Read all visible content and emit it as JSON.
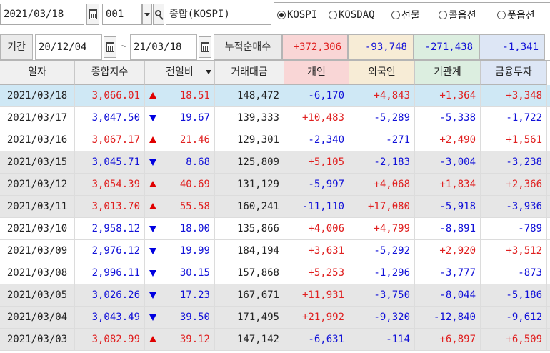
{
  "search": {
    "date": "2021/03/18",
    "code": "001",
    "name": "종합(KOSPI)"
  },
  "market_radios": [
    {
      "label": "KOSPI",
      "selected": true
    },
    {
      "label": "KOSDAQ",
      "selected": false
    },
    {
      "label": "선물",
      "selected": false
    },
    {
      "label": "콜옵션",
      "selected": false
    },
    {
      "label": "풋옵션",
      "selected": false
    }
  ],
  "period": {
    "label": "기간",
    "from": "20/12/04",
    "separator": "~",
    "to": "21/03/18",
    "cumulative_label": "누적순매수",
    "totals": [
      "+372,306",
      "-93,748",
      "-271,438",
      "-1,341"
    ]
  },
  "columns": [
    "일자",
    "종합지수",
    "전일비",
    "거래대금",
    "개인",
    "외국인",
    "기관계",
    "금융투자"
  ],
  "rows": [
    {
      "date": "2021/03/18",
      "index": "3,066.01",
      "dir": "up",
      "change": "18.51",
      "value": "148,472",
      "individual": "-6,170",
      "foreign": "+4,843",
      "institution": "+1,364",
      "financial": "+3,348"
    },
    {
      "date": "2021/03/17",
      "index": "3,047.50",
      "dir": "down",
      "change": "19.67",
      "value": "139,333",
      "individual": "+10,483",
      "foreign": "-5,289",
      "institution": "-5,338",
      "financial": "-1,722"
    },
    {
      "date": "2021/03/16",
      "index": "3,067.17",
      "dir": "up",
      "change": "21.46",
      "value": "129,301",
      "individual": "-2,340",
      "foreign": "-271",
      "institution": "+2,490",
      "financial": "+1,561"
    },
    {
      "date": "2021/03/15",
      "index": "3,045.71",
      "dir": "down",
      "change": "8.68",
      "value": "125,809",
      "individual": "+5,105",
      "foreign": "-2,183",
      "institution": "-3,004",
      "financial": "-3,238"
    },
    {
      "date": "2021/03/12",
      "index": "3,054.39",
      "dir": "up",
      "change": "40.69",
      "value": "131,129",
      "individual": "-5,997",
      "foreign": "+4,068",
      "institution": "+1,834",
      "financial": "+2,366"
    },
    {
      "date": "2021/03/11",
      "index": "3,013.70",
      "dir": "up",
      "change": "55.58",
      "value": "160,241",
      "individual": "-11,110",
      "foreign": "+17,080",
      "institution": "-5,918",
      "financial": "-3,936"
    },
    {
      "date": "2021/03/10",
      "index": "2,958.12",
      "dir": "down",
      "change": "18.00",
      "value": "135,866",
      "individual": "+4,006",
      "foreign": "+4,799",
      "institution": "-8,891",
      "financial": "-789"
    },
    {
      "date": "2021/03/09",
      "index": "2,976.12",
      "dir": "down",
      "change": "19.99",
      "value": "184,194",
      "individual": "+3,631",
      "foreign": "-5,292",
      "institution": "+2,920",
      "financial": "+3,512"
    },
    {
      "date": "2021/03/08",
      "index": "2,996.11",
      "dir": "down",
      "change": "30.15",
      "value": "157,868",
      "individual": "+5,253",
      "foreign": "-1,296",
      "institution": "-3,777",
      "financial": "-873"
    },
    {
      "date": "2021/03/05",
      "index": "3,026.26",
      "dir": "down",
      "change": "17.23",
      "value": "167,671",
      "individual": "+11,931",
      "foreign": "-3,750",
      "institution": "-8,044",
      "financial": "-5,186"
    },
    {
      "date": "2021/03/04",
      "index": "3,043.49",
      "dir": "down",
      "change": "39.50",
      "value": "171,495",
      "individual": "+21,992",
      "foreign": "-9,320",
      "institution": "-12,840",
      "financial": "-9,612"
    },
    {
      "date": "2021/03/03",
      "index": "3,082.99",
      "dir": "up",
      "change": "39.12",
      "value": "147,142",
      "individual": "-6,631",
      "foreign": "-114",
      "institution": "+6,897",
      "financial": "+6,509"
    }
  ],
  "colors": {
    "up": "#e02020",
    "down": "#1010d8",
    "header_individual_bg": "#f9d6d6",
    "header_foreign_bg": "#f7ecd6",
    "header_institution_bg": "#dceee0",
    "header_financial_bg": "#dde6f5",
    "selected_row_bg": "#cfe8f5",
    "zebra_bg": "#e6e6e6"
  }
}
